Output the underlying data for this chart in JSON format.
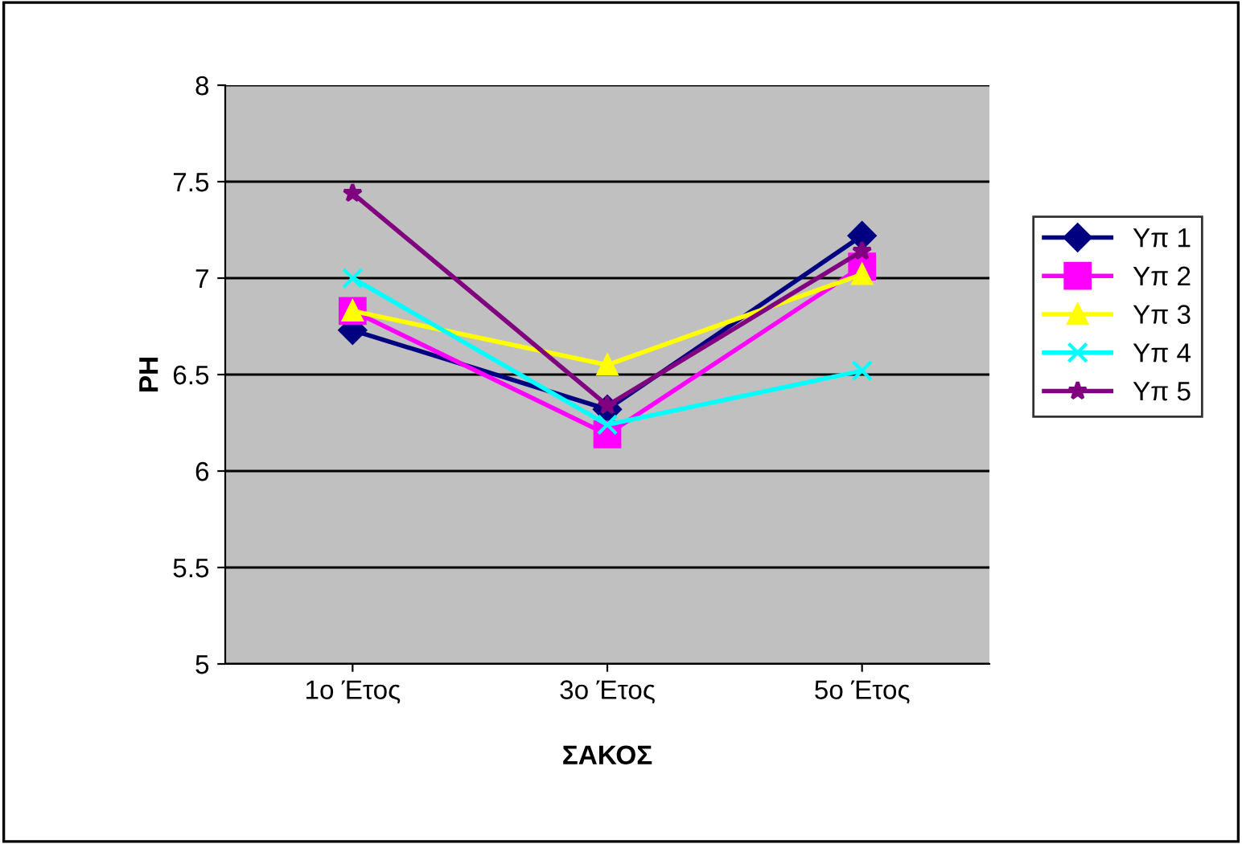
{
  "chart_data": {
    "type": "line",
    "xlabel": "ΣΑΚΟΣ",
    "ylabel": "PH",
    "categories": [
      "1ο Έτος",
      "3ο Έτος",
      "5ο Έτος"
    ],
    "series": [
      {
        "name": "Υπ 1",
        "color": "#000080",
        "marker": "diamond",
        "values": [
          6.73,
          6.32,
          7.22
        ]
      },
      {
        "name": "Υπ 2",
        "color": "#ff00ff",
        "marker": "square",
        "values": [
          6.83,
          6.19,
          7.06
        ]
      },
      {
        "name": "Υπ 3",
        "color": "#ffff00",
        "marker": "triangle",
        "values": [
          6.83,
          6.55,
          7.02
        ]
      },
      {
        "name": "Υπ 4",
        "color": "#00ffff",
        "marker": "cross",
        "values": [
          7.0,
          6.24,
          6.52
        ]
      },
      {
        "name": "Υπ 5",
        "color": "#800080",
        "marker": "star",
        "values": [
          7.44,
          6.34,
          7.14
        ]
      }
    ],
    "ylim": [
      5,
      8
    ],
    "yticks": [
      5,
      5.5,
      6,
      6.5,
      7,
      7.5,
      8
    ],
    "grid": "y",
    "legend": "right"
  }
}
